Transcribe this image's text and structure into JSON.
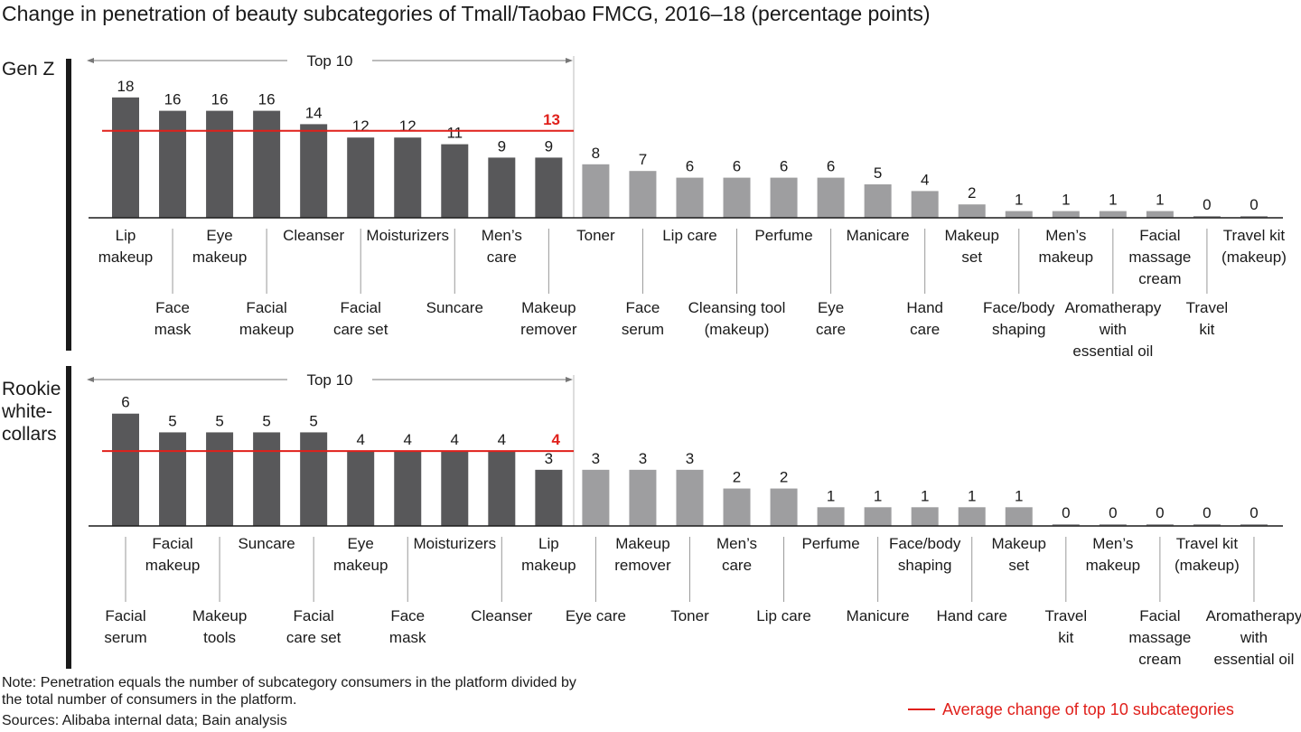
{
  "title": "Change in penetration of beauty subcategories of Tmall/Taobao FMCG, 2016–18 (percentage points)",
  "chart_data": [
    {
      "type": "bar",
      "panel_label": "Gen Z",
      "bracket_label": "Top 10",
      "categories": [
        "Lip\nmakeup",
        "Face\nmask",
        "Eye\nmakeup",
        "Facial\nmakeup",
        "Cleanser",
        "Facial\ncare set",
        "Moisturizers",
        "Suncare",
        "Men’s\ncare",
        "Makeup\nremover",
        "Toner",
        "Face\nserum",
        "Lip care",
        "Cleansing tool\n(makeup)",
        "Perfume",
        "Eye\ncare",
        "Manicare",
        "Hand\ncare",
        "Makeup\nset",
        "Face/body\nshaping",
        "Men’s\nmakeup",
        "Aromatherapy\nwith\nessential oil",
        "Facial\nmassage\ncream",
        "Travel\nkit",
        "Travel kit\n(makeup)"
      ],
      "values": [
        18,
        16,
        16,
        16,
        14,
        12,
        12,
        11,
        9,
        9,
        8,
        7,
        6,
        6,
        6,
        6,
        5,
        4,
        2,
        1,
        1,
        1,
        1,
        0,
        0
      ],
      "colors": [
        "#58585a",
        "#58585a",
        "#58585a",
        "#58585a",
        "#58585a",
        "#58585a",
        "#58585a",
        "#58585a",
        "#58585a",
        "#58585a",
        "#9e9ea0",
        "#9e9ea0",
        "#9e9ea0",
        "#9e9ea0",
        "#9e9ea0",
        "#9e9ea0",
        "#9e9ea0",
        "#9e9ea0",
        "#9e9ea0",
        "#9e9ea0",
        "#9e9ea0",
        "#9e9ea0",
        "#9e9ea0",
        "#9e9ea0",
        "#9e9ea0"
      ],
      "first_label_row": "upper",
      "average": 13,
      "average_color": "#e0201b",
      "ylim": [
        0,
        20
      ]
    },
    {
      "type": "bar",
      "panel_label": "Rookie\nwhite-\ncollars",
      "bracket_label": "Top 10",
      "categories": [
        "Facial\nserum",
        "Facial\nmakeup",
        "Makeup\ntools",
        "Suncare",
        "Facial\ncare set",
        "Eye\nmakeup",
        "Face\nmask",
        "Moisturizers",
        "Cleanser",
        "Lip\nmakeup",
        "Eye care",
        "Makeup\nremover",
        "Toner",
        "Men’s\ncare",
        "Lip care",
        "Perfume",
        "Manicure",
        "Face/body\nshaping",
        "Hand care",
        "Makeup\nset",
        "Travel\nkit",
        "Men’s\nmakeup",
        "Facial\nmassage\ncream",
        "Travel kit\n(makeup)",
        "Aromatherapy\nwith\nessential oil"
      ],
      "values": [
        6,
        5,
        5,
        5,
        5,
        4,
        4,
        4,
        4,
        3,
        3,
        3,
        3,
        2,
        2,
        1,
        1,
        1,
        1,
        1,
        0,
        0,
        0,
        0,
        0
      ],
      "colors": [
        "#58585a",
        "#58585a",
        "#58585a",
        "#58585a",
        "#58585a",
        "#58585a",
        "#58585a",
        "#58585a",
        "#58585a",
        "#58585a",
        "#9e9ea0",
        "#9e9ea0",
        "#9e9ea0",
        "#9e9ea0",
        "#9e9ea0",
        "#9e9ea0",
        "#9e9ea0",
        "#9e9ea0",
        "#9e9ea0",
        "#9e9ea0",
        "#9e9ea0",
        "#9e9ea0",
        "#9e9ea0",
        "#9e9ea0",
        "#9e9ea0"
      ],
      "first_label_row": "lower",
      "average": 4,
      "average_color": "#e0201b",
      "ylim": [
        0,
        7
      ]
    }
  ],
  "notes": [
    "Note: Penetration equals the number of subcategory consumers in the platform divided by",
    "the total number of consumers in the platform.",
    "Sources: Alibaba internal data; Bain analysis"
  ],
  "legend": {
    "label": "Average change of top 10 subcategories",
    "color": "#e0201b"
  }
}
